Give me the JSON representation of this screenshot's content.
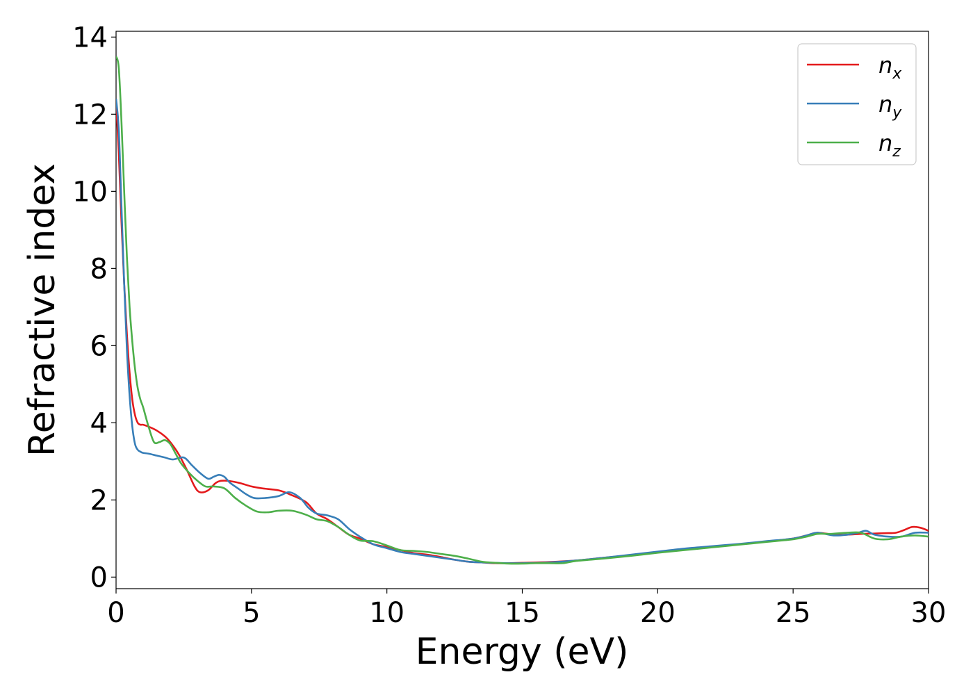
{
  "chart_data": {
    "type": "line",
    "title": "",
    "xlabel": "Energy (eV)",
    "ylabel": "Refractive index",
    "xlim": [
      0,
      30
    ],
    "ylim": [
      -0.3,
      14.15
    ],
    "xticks": [
      0,
      5,
      10,
      15,
      20,
      25,
      30
    ],
    "yticks": [
      0,
      2,
      4,
      6,
      8,
      10,
      12,
      14
    ],
    "grid": false,
    "legend_position": "top-right",
    "series": [
      {
        "name": "n_x",
        "label_base": "n",
        "label_sub": "x",
        "color": "#e41a1c",
        "x": [
          0.0,
          0.1,
          0.2,
          0.3,
          0.4,
          0.5,
          0.6,
          0.7,
          0.8,
          0.9,
          1.0,
          1.2,
          1.5,
          1.8,
          2.0,
          2.3,
          2.6,
          2.9,
          3.1,
          3.4,
          3.7,
          4.0,
          4.5,
          5.0,
          5.4,
          6.0,
          6.4,
          7.0,
          7.4,
          7.8,
          8.2,
          8.6,
          9.0,
          9.5,
          10.0,
          10.5,
          11.0,
          11.5,
          12.0,
          12.5,
          13.0,
          13.5,
          14.0,
          14.5,
          15.0,
          16.0,
          17.0,
          18.0,
          19.0,
          20.0,
          21.0,
          22.0,
          23.0,
          24.0,
          25.0,
          25.5,
          25.9,
          26.5,
          27.0,
          27.5,
          28.0,
          28.5,
          28.8,
          29.1,
          29.4,
          29.7,
          30.0
        ],
        "y": [
          12.3,
          11.0,
          9.2,
          7.6,
          6.3,
          5.3,
          4.6,
          4.2,
          4.0,
          3.95,
          3.95,
          3.9,
          3.8,
          3.65,
          3.5,
          3.2,
          2.8,
          2.35,
          2.2,
          2.25,
          2.45,
          2.5,
          2.45,
          2.35,
          2.3,
          2.25,
          2.15,
          1.95,
          1.65,
          1.5,
          1.3,
          1.1,
          1.0,
          0.85,
          0.78,
          0.7,
          0.62,
          0.58,
          0.52,
          0.45,
          0.4,
          0.38,
          0.36,
          0.36,
          0.37,
          0.39,
          0.43,
          0.5,
          0.57,
          0.65,
          0.72,
          0.79,
          0.85,
          0.92,
          1.0,
          1.08,
          1.15,
          1.1,
          1.1,
          1.12,
          1.13,
          1.14,
          1.15,
          1.22,
          1.3,
          1.28,
          1.2
        ]
      },
      {
        "name": "n_y",
        "label_base": "n",
        "label_sub": "y",
        "color": "#377eb8",
        "x": [
          0.0,
          0.1,
          0.2,
          0.3,
          0.4,
          0.5,
          0.6,
          0.7,
          0.8,
          0.9,
          1.0,
          1.2,
          1.5,
          1.8,
          2.1,
          2.5,
          2.8,
          3.1,
          3.4,
          3.6,
          3.8,
          4.0,
          4.2,
          4.5,
          4.8,
          5.1,
          5.5,
          6.0,
          6.4,
          6.8,
          7.1,
          7.4,
          7.8,
          8.2,
          8.6,
          9.0,
          9.5,
          10.0,
          10.5,
          11.0,
          11.5,
          12.0,
          12.5,
          13.0,
          13.5,
          14.0,
          14.5,
          15.0,
          16.0,
          17.0,
          18.0,
          19.0,
          20.0,
          21.0,
          22.0,
          23.0,
          24.0,
          25.0,
          25.5,
          25.9,
          26.5,
          27.0,
          27.4,
          27.7,
          28.0,
          28.5,
          29.0,
          29.5,
          30.0
        ],
        "y": [
          12.4,
          11.6,
          9.6,
          7.6,
          5.9,
          4.7,
          3.9,
          3.45,
          3.3,
          3.25,
          3.22,
          3.2,
          3.15,
          3.1,
          3.05,
          3.1,
          2.9,
          2.7,
          2.55,
          2.6,
          2.65,
          2.6,
          2.45,
          2.3,
          2.15,
          2.05,
          2.05,
          2.1,
          2.2,
          2.05,
          1.8,
          1.65,
          1.6,
          1.5,
          1.25,
          1.05,
          0.85,
          0.75,
          0.65,
          0.6,
          0.55,
          0.5,
          0.45,
          0.4,
          0.38,
          0.37,
          0.36,
          0.36,
          0.38,
          0.43,
          0.5,
          0.58,
          0.66,
          0.74,
          0.8,
          0.86,
          0.93,
          1.0,
          1.08,
          1.15,
          1.08,
          1.1,
          1.15,
          1.2,
          1.1,
          1.05,
          1.05,
          1.15,
          1.15
        ]
      },
      {
        "name": "n_z",
        "label_base": "n",
        "label_sub": "z",
        "color": "#4daf4a",
        "x": [
          0.0,
          0.1,
          0.2,
          0.3,
          0.4,
          0.5,
          0.6,
          0.7,
          0.8,
          0.9,
          1.0,
          1.2,
          1.4,
          1.6,
          1.8,
          2.0,
          2.2,
          2.4,
          2.7,
          3.0,
          3.3,
          3.6,
          4.0,
          4.4,
          4.8,
          5.2,
          5.6,
          6.0,
          6.5,
          7.0,
          7.4,
          7.8,
          8.2,
          8.6,
          9.0,
          9.5,
          10.0,
          10.5,
          11.0,
          11.5,
          12.0,
          12.5,
          13.0,
          13.5,
          14.0,
          14.5,
          15.0,
          15.5,
          16.0,
          16.5,
          17.0,
          18.0,
          19.0,
          20.0,
          21.0,
          22.0,
          23.0,
          24.0,
          25.0,
          25.5,
          25.9,
          26.4,
          27.0,
          27.5,
          28.0,
          28.5,
          29.0,
          29.5,
          30.0
        ],
        "y": [
          13.5,
          13.2,
          11.8,
          10.0,
          8.3,
          7.0,
          6.1,
          5.4,
          4.9,
          4.6,
          4.4,
          3.9,
          3.5,
          3.5,
          3.55,
          3.45,
          3.2,
          2.95,
          2.7,
          2.5,
          2.35,
          2.35,
          2.3,
          2.05,
          1.85,
          1.7,
          1.68,
          1.72,
          1.72,
          1.62,
          1.5,
          1.45,
          1.3,
          1.1,
          0.95,
          0.93,
          0.82,
          0.7,
          0.68,
          0.65,
          0.6,
          0.55,
          0.48,
          0.4,
          0.37,
          0.35,
          0.35,
          0.36,
          0.36,
          0.36,
          0.42,
          0.48,
          0.55,
          0.63,
          0.7,
          0.77,
          0.84,
          0.91,
          0.98,
          1.05,
          1.12,
          1.12,
          1.15,
          1.15,
          1.0,
          0.98,
          1.05,
          1.08,
          1.05
        ]
      }
    ]
  }
}
